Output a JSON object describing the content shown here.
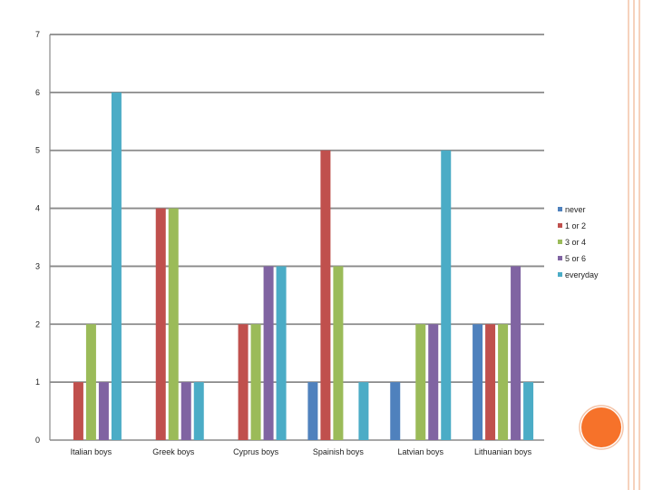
{
  "theme": {
    "frame_color": "#f4c3a7",
    "accent_circle_color": "#f6722a",
    "gridline_color": "#8a8a8a"
  },
  "chart_data": {
    "type": "bar",
    "title": "",
    "xlabel": "",
    "ylabel": "",
    "ylim": [
      0,
      7
    ],
    "yticks": [
      0,
      1,
      2,
      3,
      4,
      5,
      6,
      7
    ],
    "grid": true,
    "legend_position": "right",
    "categories": [
      "Italian boys",
      "Greek boys",
      "Cyprus boys",
      "Spainish boys",
      "Latvian boys",
      "Lithuanian boys"
    ],
    "series": [
      {
        "name": "never",
        "color": "#4f81bd",
        "values": [
          0,
          0,
          0,
          1,
          1,
          2
        ]
      },
      {
        "name": "1 or 2",
        "color": "#c0504d",
        "values": [
          1,
          4,
          2,
          5,
          0,
          2
        ]
      },
      {
        "name": "3 or 4",
        "color": "#9bbb59",
        "values": [
          2,
          4,
          2,
          3,
          2,
          2
        ]
      },
      {
        "name": "5 or 6",
        "color": "#8064a2",
        "values": [
          1,
          1,
          3,
          0,
          2,
          3
        ]
      },
      {
        "name": "everyday",
        "color": "#4bacc6",
        "values": [
          6,
          1,
          3,
          1,
          5,
          1
        ]
      }
    ]
  }
}
